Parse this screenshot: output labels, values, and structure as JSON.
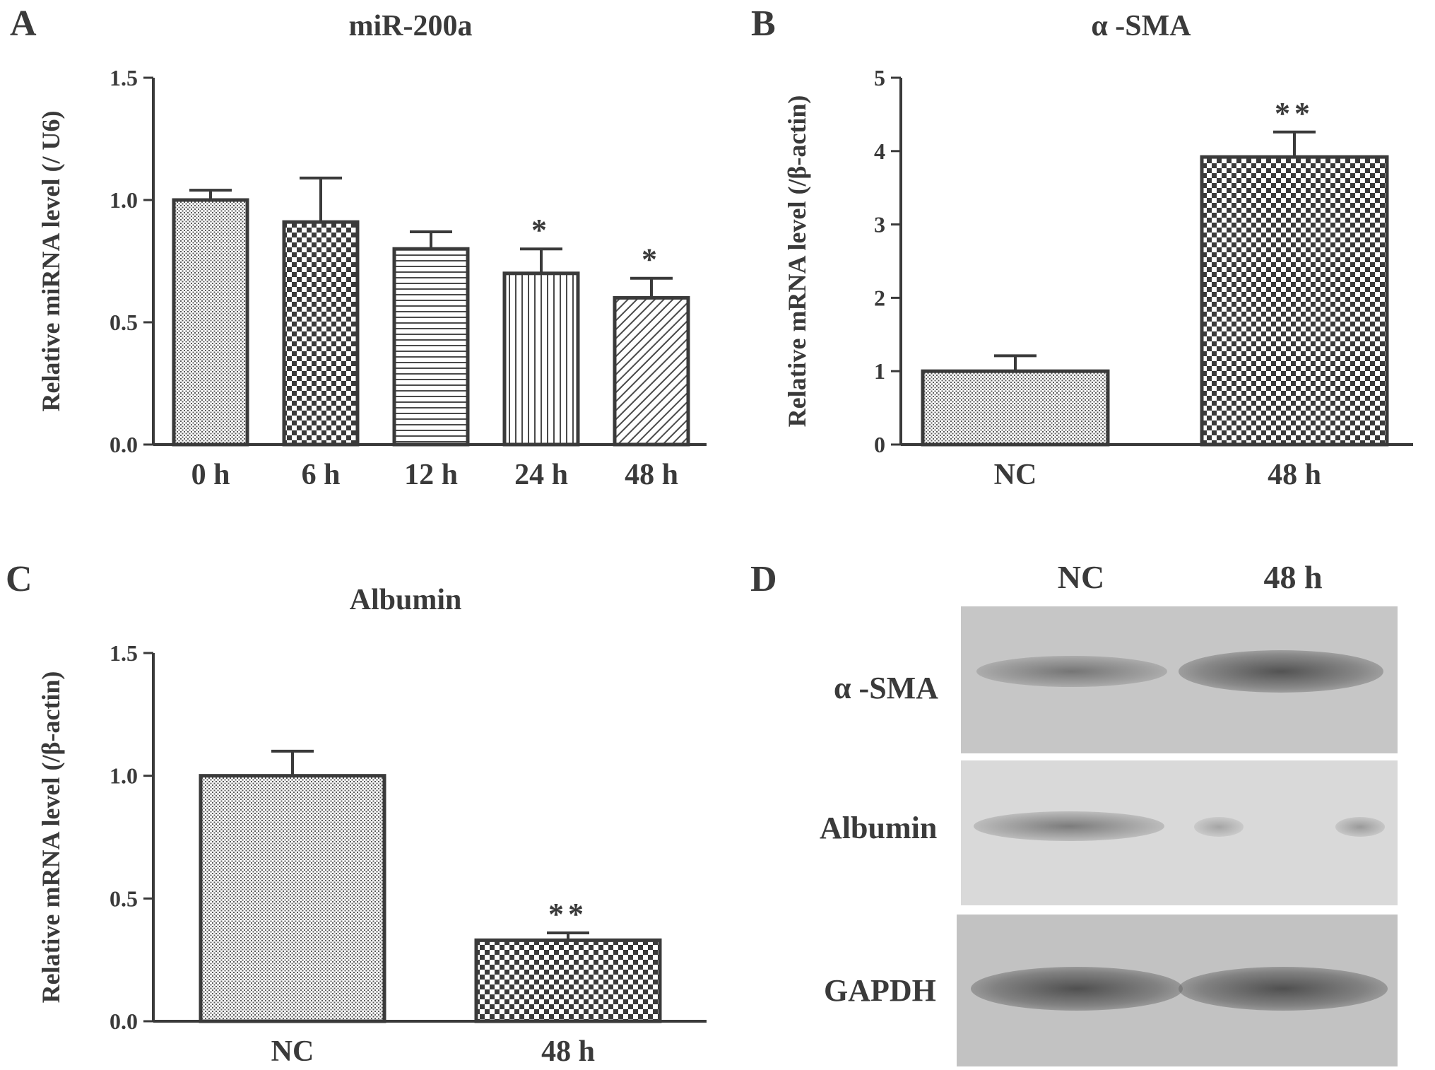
{
  "panels": {
    "a": {
      "letter": "A"
    },
    "b": {
      "letter": "B"
    },
    "c": {
      "letter": "C"
    },
    "d": {
      "letter": "D"
    }
  },
  "chart_data": [
    {
      "id": "A",
      "type": "bar",
      "title": "miR-200a",
      "ylabel": "Relative miRNA level (/ U6)",
      "xlabel": "",
      "categories": [
        "0 h",
        "6 h",
        "12 h",
        "24 h",
        "48 h"
      ],
      "values": [
        1.0,
        0.91,
        0.8,
        0.7,
        0.6
      ],
      "errors": [
        0.04,
        0.18,
        0.07,
        0.1,
        0.08
      ],
      "patterns": [
        "fine-dots",
        "checker",
        "horizontal-lines",
        "vertical-lines",
        "diagonal-lines"
      ],
      "significance": [
        "",
        "",
        "",
        "*",
        "*"
      ],
      "ylim": [
        0,
        1.5
      ],
      "yticks": [
        "0.0",
        "0.5",
        "1.0",
        "1.5"
      ],
      "grid": false
    },
    {
      "id": "B",
      "type": "bar",
      "title": "α -SMA",
      "ylabel": "Relative mRNA level (/β-actin)",
      "xlabel": "",
      "categories": [
        "NC",
        "48 h"
      ],
      "values": [
        1.0,
        3.92
      ],
      "errors": [
        0.21,
        0.34
      ],
      "patterns": [
        "fine-dots",
        "checker"
      ],
      "significance": [
        "",
        "**"
      ],
      "ylim": [
        0,
        5
      ],
      "yticks": [
        "0",
        "1",
        "2",
        "3",
        "4",
        "5"
      ],
      "grid": false
    },
    {
      "id": "C",
      "type": "bar",
      "title": "Albumin",
      "ylabel": "Relative mRNA level (/β-actin)",
      "xlabel": "",
      "categories": [
        "NC",
        "48 h"
      ],
      "values": [
        1.0,
        0.33
      ],
      "errors": [
        0.1,
        0.03
      ],
      "patterns": [
        "fine-dots",
        "checker"
      ],
      "significance": [
        "",
        "**"
      ],
      "ylim": [
        0,
        1.5
      ],
      "yticks": [
        "0.0",
        "0.5",
        "1.0",
        "1.5"
      ],
      "grid": false
    }
  ],
  "blot": {
    "columns": [
      "NC",
      "48 h"
    ],
    "rows": [
      {
        "label": "α -SMA",
        "intensity": [
          0.55,
          0.8
        ]
      },
      {
        "label": "Albumin",
        "intensity": [
          0.5,
          0.15
        ]
      },
      {
        "label": "GAPDH",
        "intensity": [
          0.9,
          0.9
        ]
      }
    ]
  }
}
